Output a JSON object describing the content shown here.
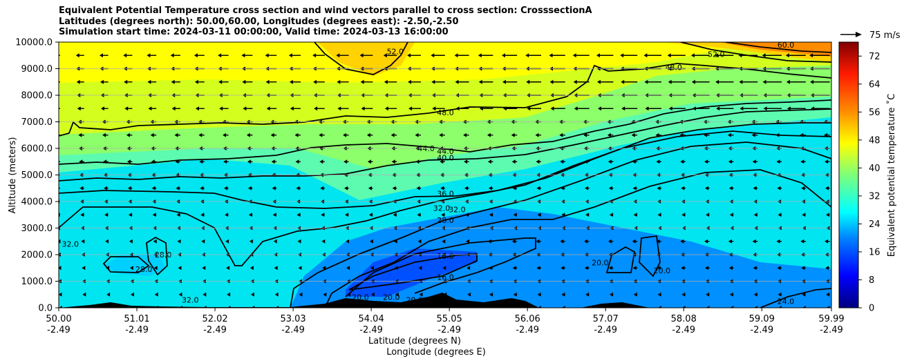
{
  "chart_data": {
    "type": "contour",
    "title_lines": [
      "Equivalent Potential Temperature cross section and wind vectors parallel to cross section: CrosssectionA",
      "Latitudes (degrees north): 50.00,60.00, Longitudes (degrees east): -2.50,-2.50",
      "Simulation start time: 2024-03-11 00:00:00, Valid time: 2024-03-13 16:00:00"
    ],
    "xlabel_lines": [
      "Latitude (degrees N)",
      "Longitude (degrees E)"
    ],
    "ylabel": "Altitude (meters)",
    "x_ticks": [
      {
        "lat": "50.00",
        "lon": "-2.49",
        "value": 50.0
      },
      {
        "lat": "51.01",
        "lon": "-2.49",
        "value": 51.01
      },
      {
        "lat": "52.02",
        "lon": "-2.49",
        "value": 52.02
      },
      {
        "lat": "53.03",
        "lon": "-2.49",
        "value": 53.03
      },
      {
        "lat": "54.04",
        "lon": "-2.49",
        "value": 54.04
      },
      {
        "lat": "55.05",
        "lon": "-2.49",
        "value": 55.05
      },
      {
        "lat": "56.06",
        "lon": "-2.49",
        "value": 56.06
      },
      {
        "lat": "57.07",
        "lon": "-2.49",
        "value": 57.07
      },
      {
        "lat": "58.08",
        "lon": "-2.49",
        "value": 58.08
      },
      {
        "lat": "59.09",
        "lon": "-2.49",
        "value": 59.09
      },
      {
        "lat": "59.99",
        "lon": "-2.49",
        "value": 59.99
      }
    ],
    "xlim": [
      50.0,
      59.99
    ],
    "y_ticks": [
      "0.0",
      "1000.0",
      "2000.0",
      "3000.0",
      "4000.0",
      "5000.0",
      "6000.0",
      "7000.0",
      "8000.0",
      "9000.0",
      "10000.0"
    ],
    "ylim": [
      0,
      10000
    ],
    "grid": "horizontal",
    "colorbar": {
      "label": "Equivalent potential temperature ˚C",
      "ticks": [
        "0",
        "8",
        "16",
        "24",
        "32",
        "40",
        "48",
        "56",
        "64",
        "72"
      ],
      "range": [
        0,
        76
      ]
    },
    "quiver_key": "75 m/s",
    "contour_labels": [
      {
        "text": "52.0",
        "x": 54.35,
        "y": 9650
      },
      {
        "text": "60.0",
        "x": 59.4,
        "y": 9900
      },
      {
        "text": "52.0",
        "x": 58.5,
        "y": 9550
      },
      {
        "text": "48.0",
        "x": 57.95,
        "y": 9050
      },
      {
        "text": "48.0",
        "x": 55.0,
        "y": 7350
      },
      {
        "text": "44.0",
        "x": 54.75,
        "y": 6000
      },
      {
        "text": "44.0",
        "x": 55.0,
        "y": 5900
      },
      {
        "text": "40.0",
        "x": 55.0,
        "y": 5650
      },
      {
        "text": "36.0",
        "x": 55.0,
        "y": 4300
      },
      {
        "text": "32.0",
        "x": 54.95,
        "y": 3750
      },
      {
        "text": "32.0",
        "x": 55.15,
        "y": 3700
      },
      {
        "text": "28.0",
        "x": 55.0,
        "y": 3300
      },
      {
        "text": "16.0",
        "x": 55.0,
        "y": 1950
      },
      {
        "text": "16.0",
        "x": 55.0,
        "y": 1150
      },
      {
        "text": "32.0",
        "x": 50.15,
        "y": 2400
      },
      {
        "text": "28.0",
        "x": 51.1,
        "y": 1450
      },
      {
        "text": "28.0",
        "x": 51.35,
        "y": 2000
      },
      {
        "text": "32.0",
        "x": 51.7,
        "y": 300
      },
      {
        "text": "20.0",
        "x": 53.9,
        "y": 400
      },
      {
        "text": "20.0",
        "x": 54.3,
        "y": 400
      },
      {
        "text": "20.0",
        "x": 54.6,
        "y": 300
      },
      {
        "text": "20.0",
        "x": 57.0,
        "y": 1700
      },
      {
        "text": "20.0",
        "x": 57.8,
        "y": 1400
      },
      {
        "text": "24.0",
        "x": 59.4,
        "y": 250
      }
    ]
  }
}
